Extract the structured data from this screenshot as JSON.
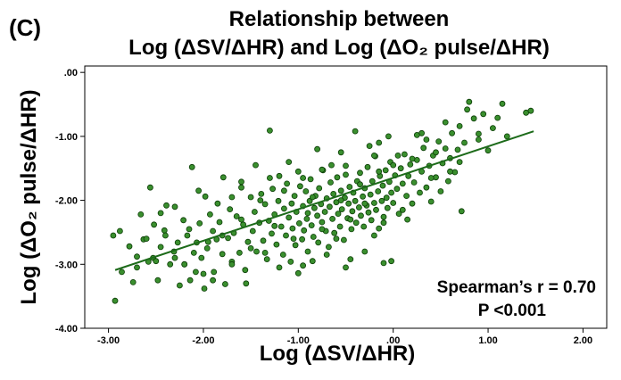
{
  "panel_label": "(C)",
  "chart_data": {
    "type": "scatter",
    "title_line1": "Relationship between",
    "title_line2": "Log (ΔSV/ΔHR) and Log (ΔO₂ pulse/ΔHR)",
    "xlabel": "Log (ΔSV/ΔHR)",
    "ylabel": "Log (ΔO₂ pulse/ΔHR)",
    "xlim": [
      -3.25,
      2.25
    ],
    "ylim": [
      -4.0,
      0.1
    ],
    "x_ticks": [
      -3.0,
      -2.0,
      -1.0,
      0.0,
      1.0,
      2.0
    ],
    "x_tick_labels": [
      "-3.00",
      "-2.00",
      "-1.00",
      ".00",
      "1.00",
      "2.00"
    ],
    "y_ticks": [
      0.0,
      -1.0,
      -2.0,
      -3.0,
      -4.0
    ],
    "y_tick_labels": [
      ".00",
      "-1.00",
      "-2.00",
      "-3.00",
      "-4.00"
    ],
    "fit_line": {
      "x": [
        -2.93,
        1.48
      ],
      "y": [
        -3.09,
        -0.92
      ]
    },
    "annotation_line1": "Spearman’s r = 0.70",
    "annotation_line2": "P <0.001",
    "point_color": "#3a8f2e",
    "point_edge": "#0b3d06",
    "line_color": "#1d6b1a",
    "points": [
      [
        -2.93,
        -3.57
      ],
      [
        -2.95,
        -2.55
      ],
      [
        -2.88,
        -2.48
      ],
      [
        -2.86,
        -3.12
      ],
      [
        -2.78,
        -2.72
      ],
      [
        -2.74,
        -3.28
      ],
      [
        -2.7,
        -2.88
      ],
      [
        -2.66,
        -2.22
      ],
      [
        -2.63,
        -2.61
      ],
      [
        -2.58,
        -2.96
      ],
      [
        -2.56,
        -1.8
      ],
      [
        -2.53,
        -2.9
      ],
      [
        -2.52,
        -2.38
      ],
      [
        -2.48,
        -3.25
      ],
      [
        -2.45,
        -2.73
      ],
      [
        -2.41,
        -2.47
      ],
      [
        -2.39,
        -2.08
      ],
      [
        -2.35,
        -3.0
      ],
      [
        -2.31,
        -2.8
      ],
      [
        -2.27,
        -2.66
      ],
      [
        -2.25,
        -3.33
      ],
      [
        -2.21,
        -2.31
      ],
      [
        -2.2,
        -3.0
      ],
      [
        -2.17,
        -2.55
      ],
      [
        -2.14,
        -3.25
      ],
      [
        -2.12,
        -1.48
      ],
      [
        -2.1,
        -2.82
      ],
      [
        -2.08,
        -3.12
      ],
      [
        -2.07,
        -2.66
      ],
      [
        -2.04,
        -2.36
      ],
      [
        -2.02,
        -2.9
      ],
      [
        -1.99,
        -3.38
      ],
      [
        -1.98,
        -1.94
      ],
      [
        -1.96,
        -2.75
      ],
      [
        -1.93,
        -2.22
      ],
      [
        -1.9,
        -2.48
      ],
      [
        -1.89,
        -3.12
      ],
      [
        -1.86,
        -2.61
      ],
      [
        -1.83,
        -2.34
      ],
      [
        -1.8,
        -2.84
      ],
      [
        -1.79,
        -1.64
      ],
      [
        -1.77,
        -3.31
      ],
      [
        -1.74,
        -2.59
      ],
      [
        -1.72,
        -2.14
      ],
      [
        -1.7,
        -2.96
      ],
      [
        -1.68,
        -2.51
      ],
      [
        -1.65,
        -2.25
      ],
      [
        -1.62,
        -2.82
      ],
      [
        -1.6,
        -1.71
      ],
      [
        -1.58,
        -2.38
      ],
      [
        -1.56,
        -3.09
      ],
      [
        -1.53,
        -2.65
      ],
      [
        -1.5,
        -1.95
      ],
      [
        -1.48,
        -2.48
      ],
      [
        -1.46,
        -2.18
      ],
      [
        -1.44,
        -2.8
      ],
      [
        -1.41,
        -2.35
      ],
      [
        -1.39,
        -1.9
      ],
      [
        -1.37,
        -2.63
      ],
      [
        -1.35,
        -2.06
      ],
      [
        -1.33,
        -2.92
      ],
      [
        -1.31,
        -2.32
      ],
      [
        -1.3,
        -0.91
      ],
      [
        -1.28,
        -2.52
      ],
      [
        -1.27,
        -1.82
      ],
      [
        -1.25,
        -2.22
      ],
      [
        -1.23,
        -2.69
      ],
      [
        -1.21,
        -2.01
      ],
      [
        -1.2,
        -1.62
      ],
      [
        -1.18,
        -2.41
      ],
      [
        -1.16,
        -2.85
      ],
      [
        -1.15,
        -2.13
      ],
      [
        -1.13,
        -2.55
      ],
      [
        -1.12,
        -1.74
      ],
      [
        -1.1,
        -2.27
      ],
      [
        -1.08,
        -2.96
      ],
      [
        -1.07,
        -2.05
      ],
      [
        -1.06,
        -2.44
      ],
      [
        -1.04,
        -1.93
      ],
      [
        -1.03,
        -2.7
      ],
      [
        -1.02,
        -2.18
      ],
      [
        -1.0,
        -3.14
      ],
      [
        -0.99,
        -2.36
      ],
      [
        -0.98,
        -1.78
      ],
      [
        -0.96,
        -2.61
      ],
      [
        -0.95,
        -2.09
      ],
      [
        -0.94,
        -2.47
      ],
      [
        -0.92,
        -1.86
      ],
      [
        -0.91,
        -2.29
      ],
      [
        -0.9,
        -2.8
      ],
      [
        -0.88,
        -2.01
      ],
      [
        -0.87,
        -1.67
      ],
      [
        -0.86,
        -2.39
      ],
      [
        -0.84,
        -2.57
      ],
      [
        -0.83,
        -2.12
      ],
      [
        -0.82,
        -1.93
      ],
      [
        -0.8,
        -2.24
      ],
      [
        -0.79,
        -2.66
      ],
      [
        -0.78,
        -1.81
      ],
      [
        -0.76,
        -2.06
      ],
      [
        -0.75,
        -2.34
      ],
      [
        -0.74,
        -1.53
      ],
      [
        -0.72,
        -2.18
      ],
      [
        -0.71,
        -2.48
      ],
      [
        -0.7,
        -1.97
      ],
      [
        -0.68,
        -2.73
      ],
      [
        -0.67,
        -2.1
      ],
      [
        -0.66,
        -1.72
      ],
      [
        -0.64,
        -2.29
      ],
      [
        -0.63,
        -1.9
      ],
      [
        -0.62,
        -2.51
      ],
      [
        -0.6,
        -2.03
      ],
      [
        -0.59,
        -1.64
      ],
      [
        -0.58,
        -2.21
      ],
      [
        -0.56,
        -2.41
      ],
      [
        -0.55,
        -1.85
      ],
      [
        -0.54,
        -2.14
      ],
      [
        -0.52,
        -2.62
      ],
      [
        -0.51,
        -1.96
      ],
      [
        -0.5,
        -1.46
      ],
      [
        -0.48,
        -2.28
      ],
      [
        -0.47,
        -2.05
      ],
      [
        -0.46,
        -1.79
      ],
      [
        -0.44,
        -2.45
      ],
      [
        -0.43,
        -2.17
      ],
      [
        -0.42,
        -1.88
      ],
      [
        -0.4,
        -2.01
      ],
      [
        -0.39,
        -2.35
      ],
      [
        -0.38,
        -1.7
      ],
      [
        -0.36,
        -2.11
      ],
      [
        -0.35,
        -1.57
      ],
      [
        -0.34,
        -2.24
      ],
      [
        -0.32,
        -1.94
      ],
      [
        -0.31,
        -2.41
      ],
      [
        -0.3,
        -1.81
      ],
      [
        -0.28,
        -2.08
      ],
      [
        -0.27,
        -1.48
      ],
      [
        -0.26,
        -2.19
      ],
      [
        -0.24,
        -1.91
      ],
      [
        -0.23,
        -2.31
      ],
      [
        -0.22,
        -1.7
      ],
      [
        -0.2,
        -2.04
      ],
      [
        -0.19,
        -1.31
      ],
      [
        -0.18,
        -2.15
      ],
      [
        -0.16,
        -1.86
      ],
      [
        -0.15,
        -2.44
      ],
      [
        -0.14,
        -1.62
      ],
      [
        -0.12,
        -2.01
      ],
      [
        -0.11,
        -1.77
      ],
      [
        -0.1,
        -2.26
      ],
      [
        -0.08,
        -1.53
      ],
      [
        -0.07,
        -1.96
      ],
      [
        -0.06,
        -2.12
      ],
      [
        -0.04,
        -1.71
      ],
      [
        -0.03,
        -1.4
      ],
      [
        -0.02,
        -1.88
      ],
      [
        0.0,
        -2.04
      ],
      [
        0.02,
        -1.61
      ],
      [
        0.04,
        -1.82
      ],
      [
        0.06,
        -2.21
      ],
      [
        0.08,
        -1.5
      ],
      [
        0.1,
        -1.74
      ],
      [
        0.12,
        -1.28
      ],
      [
        0.14,
        -1.93
      ],
      [
        0.16,
        -1.62
      ],
      [
        0.18,
        -1.44
      ],
      [
        0.2,
        -2.05
      ],
      [
        0.22,
        -1.72
      ],
      [
        0.25,
        -1.37
      ],
      [
        0.28,
        -1.88
      ],
      [
        0.3,
        -1.55
      ],
      [
        0.32,
        -1.18
      ],
      [
        0.35,
        -1.8
      ],
      [
        0.38,
        -1.46
      ],
      [
        0.4,
        -2.02
      ],
      [
        0.42,
        -1.3
      ],
      [
        0.45,
        -1.64
      ],
      [
        0.48,
        -1.08
      ],
      [
        0.5,
        -1.86
      ],
      [
        0.52,
        -1.42
      ],
      [
        0.55,
        -1.19
      ],
      [
        0.58,
        -1.7
      ],
      [
        0.6,
        -1.34
      ],
      [
        0.62,
        -0.95
      ],
      [
        0.65,
        -1.56
      ],
      [
        0.68,
        -1.21
      ],
      [
        0.7,
        -0.84
      ],
      [
        0.72,
        -2.17
      ],
      [
        0.75,
        -1.1
      ],
      [
        0.78,
        -0.58
      ],
      [
        0.8,
        -0.46
      ],
      [
        0.85,
        -0.72
      ],
      [
        0.9,
        -0.96
      ],
      [
        0.95,
        -0.65
      ],
      [
        1.0,
        -1.22
      ],
      [
        1.05,
        -0.87
      ],
      [
        1.1,
        -0.71
      ],
      [
        1.15,
        -0.49
      ],
      [
        1.4,
        -0.63
      ],
      [
        1.45,
        -0.6
      ],
      [
        -1.55,
        -3.3
      ],
      [
        -1.35,
        -2.82
      ],
      [
        -0.95,
        -3.02
      ],
      [
        -0.5,
        -3.05
      ],
      [
        -0.45,
        -2.92
      ],
      [
        -0.1,
        -2.98
      ],
      [
        -0.02,
        -2.95
      ],
      [
        -1.7,
        -3.0
      ],
      [
        -0.7,
        -2.85
      ],
      [
        -0.3,
        -2.8
      ],
      [
        -1.95,
        -2.65
      ],
      [
        -2.3,
        -2.9
      ],
      [
        -1.2,
        -3.05
      ],
      [
        -0.85,
        -2.95
      ],
      [
        -0.6,
        -2.6
      ],
      [
        -0.2,
        -2.55
      ],
      [
        -1.45,
        -1.45
      ],
      [
        -1.1,
        -1.4
      ],
      [
        -0.55,
        -1.25
      ],
      [
        -0.25,
        -1.15
      ],
      [
        -0.05,
        -1.0
      ],
      [
        -0.4,
        -0.92
      ],
      [
        0.3,
        -0.95
      ],
      [
        0.55,
        -0.78
      ],
      [
        0.25,
        -0.98
      ],
      [
        -0.15,
        -1.1
      ],
      [
        -0.75,
        -1.52
      ],
      [
        -0.95,
        -1.65
      ],
      [
        -1.7,
        -1.95
      ],
      [
        -2.05,
        -1.85
      ],
      [
        -2.3,
        -2.1
      ],
      [
        -2.6,
        -2.6
      ],
      [
        -1.85,
        -2.05
      ],
      [
        -1.6,
        -2.3
      ],
      [
        -0.3,
        -2.05
      ],
      [
        -0.1,
        -2.35
      ],
      [
        0.1,
        -2.15
      ],
      [
        0.2,
        -1.35
      ],
      [
        0.4,
        -1.65
      ],
      [
        0.6,
        -1.55
      ],
      [
        -0.65,
        -1.45
      ],
      [
        -0.8,
        -1.2
      ],
      [
        -1.0,
        -1.55
      ],
      [
        -1.15,
        -1.85
      ],
      [
        -1.4,
        -2.0
      ],
      [
        -1.25,
        -2.4
      ],
      [
        -0.9,
        -2.2
      ],
      [
        -0.55,
        -2.0
      ],
      [
        -0.35,
        -1.75
      ],
      [
        -0.15,
        -1.55
      ],
      [
        0.05,
        -1.3
      ],
      [
        0.15,
        -2.3
      ],
      [
        -2.45,
        -2.2
      ],
      [
        -2.15,
        -2.45
      ],
      [
        -1.8,
        -2.55
      ],
      [
        -1.5,
        -2.75
      ],
      [
        -1.05,
        -2.6
      ],
      [
        -0.75,
        -2.45
      ],
      [
        -2.0,
        -3.15
      ],
      [
        -2.2,
        -3.0
      ],
      [
        -1.9,
        -3.25
      ],
      [
        -2.5,
        -2.95
      ],
      [
        -2.7,
        -3.05
      ],
      [
        -2.4,
        -2.55
      ],
      [
        0.35,
        -1.05
      ],
      [
        0.45,
        -1.25
      ],
      [
        0.7,
        -1.4
      ],
      [
        0.9,
        -1.05
      ],
      [
        1.2,
        -1.0
      ],
      [
        -0.5,
        -1.6
      ],
      [
        -0.2,
        -1.3
      ],
      [
        0.0,
        -1.45
      ],
      [
        -1.3,
        -1.65
      ],
      [
        -1.6,
        -1.8
      ],
      [
        -0.85,
        -1.95
      ],
      [
        -0.45,
        -2.3
      ]
    ]
  }
}
